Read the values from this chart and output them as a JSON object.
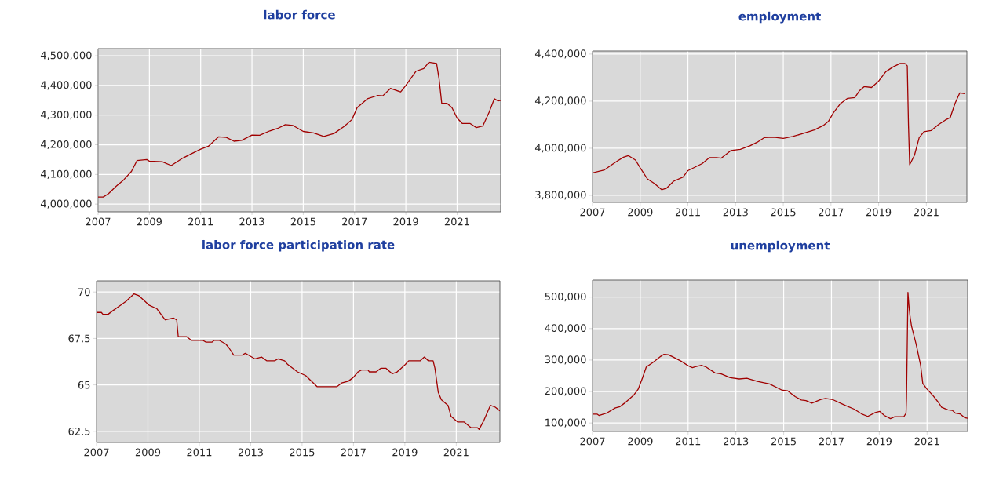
{
  "chart_data": [
    {
      "type": "line",
      "title": "labor force",
      "color": "#a00000",
      "grid": true,
      "xlim": [
        2007,
        2022.7
      ],
      "ylim": [
        3974000,
        4524000
      ],
      "xticks": [
        2007,
        2009,
        2011,
        2013,
        2015,
        2017,
        2019,
        2021
      ],
      "yticks": [
        {
          "value": 4000000,
          "label": "4,000,000"
        },
        {
          "value": 4100000,
          "label": "4,100,000"
        },
        {
          "value": 4200000,
          "label": "4,200,000"
        },
        {
          "value": 4300000,
          "label": "4,300,000"
        },
        {
          "value": 4400000,
          "label": "4,400,000"
        },
        {
          "value": 4500000,
          "label": "4,500,000"
        }
      ],
      "x": [
        2007.0,
        2007.2,
        2007.4,
        2007.7,
        2008.0,
        2008.3,
        2008.52,
        2008.9,
        2009.0,
        2009.5,
        2009.85,
        2010.3,
        2010.6,
        2011.0,
        2011.3,
        2011.7,
        2012.0,
        2012.3,
        2012.6,
        2013.0,
        2013.3,
        2013.7,
        2014.0,
        2014.3,
        2014.6,
        2015.0,
        2015.4,
        2015.8,
        2016.2,
        2016.6,
        2016.9,
        2017.1,
        2017.5,
        2017.9,
        2018.1,
        2018.4,
        2018.8,
        2019.0,
        2019.4,
        2019.7,
        2019.9,
        2020.2,
        2020.3,
        2020.4,
        2020.6,
        2020.8,
        2021.0,
        2021.2,
        2021.5,
        2021.75,
        2022.0,
        2022.25,
        2022.45,
        2022.6,
        2022.7
      ],
      "values": [
        4024000,
        4024000,
        4035000,
        4060000,
        4082000,
        4110000,
        4147000,
        4150000,
        4145000,
        4143000,
        4130000,
        4155000,
        4168000,
        4185000,
        4195000,
        4227000,
        4225000,
        4212000,
        4215000,
        4233000,
        4232000,
        4247000,
        4255000,
        4268000,
        4265000,
        4245000,
        4240000,
        4228000,
        4238000,
        4262000,
        4285000,
        4325000,
        4355000,
        4366000,
        4365000,
        4390000,
        4378000,
        4400000,
        4448000,
        4457000,
        4478000,
        4474000,
        4420000,
        4340000,
        4340000,
        4325000,
        4290000,
        4272000,
        4272000,
        4258000,
        4263000,
        4310000,
        4355000,
        4348000,
        4350000
      ]
    },
    {
      "type": "line",
      "title": "employment",
      "color": "#a00000",
      "grid": true,
      "xlim": [
        2007,
        2022.7
      ],
      "ylim": [
        3770000,
        4413000
      ],
      "xticks": [
        2007,
        2009,
        2011,
        2013,
        2015,
        2017,
        2019,
        2021
      ],
      "yticks": [
        {
          "value": 3800000,
          "label": "3,800,000"
        },
        {
          "value": 4000000,
          "label": "4,000,000"
        },
        {
          "value": 4200000,
          "label": "4,200,000"
        },
        {
          "value": 4400000,
          "label": "4,400,000"
        }
      ],
      "x": [
        2007.0,
        2007.5,
        2008.0,
        2008.3,
        2008.5,
        2008.8,
        2009.0,
        2009.3,
        2009.6,
        2009.9,
        2010.1,
        2010.4,
        2010.8,
        2011.0,
        2011.3,
        2011.6,
        2011.9,
        2012.2,
        2012.4,
        2012.8,
        2013.2,
        2013.6,
        2013.9,
        2014.2,
        2014.6,
        2015.0,
        2015.4,
        2015.8,
        2016.3,
        2016.7,
        2016.9,
        2017.1,
        2017.4,
        2017.7,
        2018.0,
        2018.2,
        2018.4,
        2018.7,
        2019.0,
        2019.3,
        2019.6,
        2019.9,
        2020.1,
        2020.2,
        2020.25,
        2020.3,
        2020.5,
        2020.7,
        2020.9,
        2021.2,
        2021.5,
        2021.8,
        2022.0,
        2022.2,
        2022.4,
        2022.6
      ],
      "values": [
        3895000,
        3908000,
        3943000,
        3962000,
        3969000,
        3950000,
        3917000,
        3870000,
        3850000,
        3824000,
        3830000,
        3860000,
        3878000,
        3905000,
        3920000,
        3935000,
        3960000,
        3960000,
        3958000,
        3990000,
        3995000,
        4010000,
        4025000,
        4045000,
        4047000,
        4042000,
        4050000,
        4062000,
        4078000,
        4098000,
        4115000,
        4150000,
        4190000,
        4212000,
        4215000,
        4245000,
        4262000,
        4258000,
        4285000,
        4325000,
        4345000,
        4360000,
        4360000,
        4350000,
        4100000,
        3930000,
        3970000,
        4045000,
        4070000,
        4075000,
        4100000,
        4120000,
        4130000,
        4190000,
        4235000,
        4232000
      ]
    },
    {
      "type": "line",
      "title": "labor force participation rate",
      "color": "#a00000",
      "grid": true,
      "xlim": [
        2007,
        2022.7
      ],
      "ylim": [
        61.9,
        70.6
      ],
      "xticks": [
        2007,
        2009,
        2011,
        2013,
        2015,
        2017,
        2019,
        2021
      ],
      "yticks": [
        62.5,
        65,
        67.5,
        70
      ],
      "x": [
        2007.0,
        2007.19,
        2007.25,
        2007.45,
        2007.64,
        2007.95,
        2008.15,
        2008.46,
        2008.65,
        2009.04,
        2009.35,
        2009.67,
        2009.99,
        2010.12,
        2010.18,
        2010.5,
        2010.69,
        2011.13,
        2011.26,
        2011.49,
        2011.58,
        2011.77,
        2012.03,
        2012.15,
        2012.34,
        2012.66,
        2012.79,
        2012.92,
        2013.17,
        2013.42,
        2013.62,
        2013.93,
        2014.06,
        2014.32,
        2014.44,
        2014.82,
        2015.14,
        2015.59,
        2016.35,
        2016.54,
        2016.8,
        2016.99,
        2017.18,
        2017.31,
        2017.56,
        2017.62,
        2017.88,
        2018.07,
        2018.26,
        2018.51,
        2018.7,
        2019.02,
        2019.15,
        2019.6,
        2019.76,
        2019.91,
        2020.1,
        2020.17,
        2020.3,
        2020.42,
        2020.68,
        2020.8,
        2021.06,
        2021.31,
        2021.57,
        2021.82,
        2021.89,
        2022.08,
        2022.33,
        2022.52,
        2022.7
      ],
      "values": [
        68.9,
        68.9,
        68.8,
        68.8,
        69.0,
        69.3,
        69.5,
        69.9,
        69.8,
        69.3,
        69.1,
        68.5,
        68.6,
        68.5,
        67.6,
        67.6,
        67.4,
        67.4,
        67.3,
        67.3,
        67.4,
        67.4,
        67.2,
        67.0,
        66.6,
        66.6,
        66.7,
        66.6,
        66.4,
        66.5,
        66.3,
        66.3,
        66.4,
        66.3,
        66.1,
        65.7,
        65.5,
        64.9,
        64.9,
        65.1,
        65.2,
        65.4,
        65.7,
        65.8,
        65.8,
        65.7,
        65.7,
        65.9,
        65.9,
        65.6,
        65.7,
        66.1,
        66.3,
        66.3,
        66.5,
        66.3,
        66.3,
        65.9,
        64.6,
        64.2,
        63.9,
        63.3,
        63.0,
        63.0,
        62.7,
        62.7,
        62.6,
        63.1,
        63.9,
        63.8,
        63.6
      ]
    },
    {
      "type": "line",
      "title": "unemployment",
      "color": "#a00000",
      "grid": true,
      "xlim": [
        2007,
        2022.7
      ],
      "ylim": [
        73000,
        554000
      ],
      "xticks": [
        2007,
        2009,
        2011,
        2013,
        2015,
        2017,
        2019,
        2021
      ],
      "yticks": [
        {
          "value": 100000,
          "label": "100,000"
        },
        {
          "value": 200000,
          "label": "200,000"
        },
        {
          "value": 300000,
          "label": "300,000"
        },
        {
          "value": 400000,
          "label": "400,000"
        },
        {
          "value": 500000,
          "label": "500,000"
        }
      ],
      "x": [
        2007.0,
        2007.2,
        2007.27,
        2007.58,
        2007.96,
        2008.15,
        2008.34,
        2008.72,
        2008.91,
        2009.1,
        2009.25,
        2009.54,
        2009.86,
        2009.98,
        2010.17,
        2010.36,
        2010.74,
        2011.0,
        2011.18,
        2011.31,
        2011.56,
        2011.75,
        2012.13,
        2012.39,
        2012.76,
        2013.14,
        2013.46,
        2013.65,
        2013.9,
        2014.41,
        2014.91,
        2015.17,
        2015.48,
        2015.74,
        2015.93,
        2016.18,
        2016.56,
        2016.75,
        2017.06,
        2017.57,
        2017.95,
        2018.26,
        2018.52,
        2018.83,
        2019.02,
        2019.21,
        2019.47,
        2019.65,
        2020.03,
        2020.12,
        2020.14,
        2020.17,
        2020.2,
        2020.24,
        2020.29,
        2020.35,
        2020.54,
        2020.73,
        2020.82,
        2020.98,
        2021.24,
        2021.49,
        2021.61,
        2021.87,
        2022.06,
        2022.19,
        2022.38,
        2022.57,
        2022.7
      ],
      "values": [
        128000,
        128000,
        124000,
        131000,
        148000,
        152000,
        163000,
        188000,
        207000,
        245000,
        278000,
        293000,
        312000,
        318000,
        317000,
        310000,
        295000,
        282000,
        276000,
        279000,
        283000,
        278000,
        259000,
        256000,
        244000,
        240000,
        242000,
        238000,
        232000,
        224000,
        205000,
        202000,
        184000,
        173000,
        171000,
        163000,
        175000,
        178000,
        174000,
        156000,
        144000,
        129000,
        121000,
        133000,
        137000,
        124000,
        114000,
        120000,
        120000,
        131000,
        178000,
        341000,
        515000,
        475000,
        437000,
        408000,
        351000,
        284000,
        226000,
        209000,
        188000,
        164000,
        150000,
        142000,
        140000,
        131000,
        129000,
        117000,
        115000
      ]
    }
  ]
}
